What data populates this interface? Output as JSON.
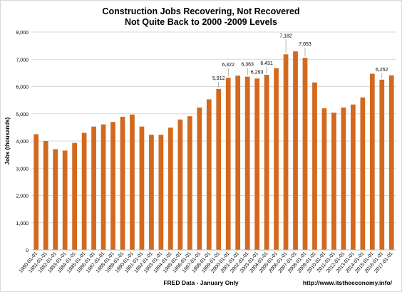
{
  "title_line1": "Construction Jobs Recovering, Not Recovered",
  "title_line2": "Not Quite Back to 2000 -2009 Levels",
  "source_note": "FRED Data - January Only",
  "website": "http://www.itstheeconomy.info/",
  "colors": {
    "bar": "#D2691E",
    "grid": "#d9d9d9",
    "text": "#000000"
  },
  "chart_data": {
    "type": "bar",
    "ylabel": "Jobs (thousands)",
    "xlabel": "",
    "ylim": [
      0,
      8000
    ],
    "yticks": [
      0,
      1000,
      2000,
      3000,
      4000,
      5000,
      6000,
      7000,
      8000
    ],
    "ytick_labels": [
      "0",
      "1,000",
      "2,000",
      "3,000",
      "4,000",
      "5,000",
      "6,000",
      "7,000",
      "8,000"
    ],
    "grid": true,
    "legend": "none",
    "categories": [
      "1980-01-01",
      "1981-01-01",
      "1982-01-01",
      "1983-01-01",
      "1984-01-01",
      "1985-01-01",
      "1986-01-01",
      "1987-01-01",
      "1988-01-01",
      "1989-01-01",
      "1990-01-01",
      "1991-01-01",
      "1992-01-01",
      "1993-01-01",
      "1994-01-01",
      "1995-01-01",
      "1996-01-01",
      "1997-01-01",
      "1998-01-01",
      "1999-01-01",
      "2000-01-01",
      "2001-01-01",
      "2002-01-01",
      "2003-01-01",
      "2004-01-01",
      "2005-01-01",
      "2006-01-01",
      "2007-01-01",
      "2008-01-01",
      "2009-01-01",
      "2010-01-01",
      "2011-01-01",
      "2012-01-01",
      "2013-01-01",
      "2014-01-01",
      "2015-01-01",
      "2016-01-01",
      "2017-01-01"
    ],
    "values": [
      4250,
      4000,
      3700,
      3650,
      3930,
      4300,
      4530,
      4610,
      4700,
      4890,
      4970,
      4530,
      4230,
      4230,
      4490,
      4790,
      4910,
      5230,
      5530,
      5912,
      6322,
      6400,
      6363,
      6293,
      6431,
      6670,
      7182,
      7290,
      7053,
      6150,
      5200,
      5040,
      5230,
      5340,
      5600,
      6470,
      6252,
      6410
    ],
    "data_labels": [
      {
        "index": 19,
        "text": "5,912"
      },
      {
        "index": 20,
        "text": "6,322"
      },
      {
        "index": 22,
        "text": "6,363"
      },
      {
        "index": 23,
        "text": "6,293"
      },
      {
        "index": 24,
        "text": "6,431"
      },
      {
        "index": 26,
        "text": "7,182"
      },
      {
        "index": 28,
        "text": "7,053"
      },
      {
        "index": 36,
        "text": "6,252"
      }
    ]
  }
}
